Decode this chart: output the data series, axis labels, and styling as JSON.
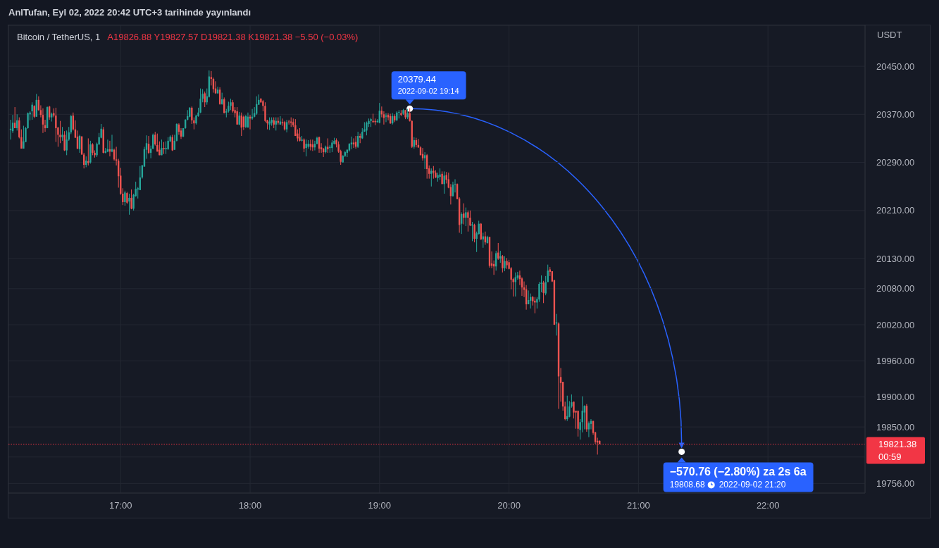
{
  "chart_data": {
    "type": "candlestick",
    "title": "Bitcoin / TetherUS, 1",
    "subtitle": "A19826.88 Y19827.57 D19821.38 K19821.38 −5.50 (−0.03%)",
    "ylabel": "USDT",
    "x": [
      "2022-09-02T16:09",
      "2022-09-02T16:10",
      "2022-09-02T16:11",
      "2022-09-02T16:12",
      "2022-09-02T16:13",
      "2022-09-02T16:14",
      "2022-09-02T16:15",
      "2022-09-02T16:16",
      "2022-09-02T16:17",
      "2022-09-02T16:18",
      "2022-09-02T16:19",
      "2022-09-02T16:20",
      "2022-09-02T16:21",
      "2022-09-02T16:22",
      "2022-09-02T16:23",
      "2022-09-02T16:24",
      "2022-09-02T16:25",
      "2022-09-02T16:26",
      "2022-09-02T16:27",
      "2022-09-02T16:28",
      "2022-09-02T16:29",
      "2022-09-02T16:30",
      "2022-09-02T16:31",
      "2022-09-02T16:32",
      "2022-09-02T16:33",
      "2022-09-02T16:34",
      "2022-09-02T16:35",
      "2022-09-02T16:36",
      "2022-09-02T16:37",
      "2022-09-02T16:38",
      "2022-09-02T16:39",
      "2022-09-02T16:40",
      "2022-09-02T16:41",
      "2022-09-02T16:42",
      "2022-09-02T16:43",
      "2022-09-02T16:44",
      "2022-09-02T16:45",
      "2022-09-02T16:46",
      "2022-09-02T16:47",
      "2022-09-02T16:48",
      "2022-09-02T16:49",
      "2022-09-02T16:50",
      "2022-09-02T16:51",
      "2022-09-02T16:52",
      "2022-09-02T16:53",
      "2022-09-02T16:54",
      "2022-09-02T16:55",
      "2022-09-02T16:56",
      "2022-09-02T16:57",
      "2022-09-02T16:58",
      "2022-09-02T16:59",
      "2022-09-02T17:00",
      "2022-09-02T17:01",
      "2022-09-02T17:02",
      "2022-09-02T17:03",
      "2022-09-02T17:04",
      "2022-09-02T17:05",
      "2022-09-02T17:06",
      "2022-09-02T17:07",
      "2022-09-02T17:08",
      "2022-09-02T17:09",
      "2022-09-02T17:10",
      "2022-09-02T17:11",
      "2022-09-02T17:12",
      "2022-09-02T17:13",
      "2022-09-02T17:14",
      "2022-09-02T17:15",
      "2022-09-02T17:16",
      "2022-09-02T17:17",
      "2022-09-02T17:18",
      "2022-09-02T17:19",
      "2022-09-02T17:20",
      "2022-09-02T17:21",
      "2022-09-02T17:22",
      "2022-09-02T17:23",
      "2022-09-02T17:24",
      "2022-09-02T17:25",
      "2022-09-02T17:26",
      "2022-09-02T17:27",
      "2022-09-02T17:28",
      "2022-09-02T17:29",
      "2022-09-02T17:30",
      "2022-09-02T17:31",
      "2022-09-02T17:32",
      "2022-09-02T17:33",
      "2022-09-02T17:34",
      "2022-09-02T17:35",
      "2022-09-02T17:36",
      "2022-09-02T17:37",
      "2022-09-02T17:38",
      "2022-09-02T17:39",
      "2022-09-02T17:40",
      "2022-09-02T17:41",
      "2022-09-02T17:42",
      "2022-09-02T17:43",
      "2022-09-02T17:44",
      "2022-09-02T17:45",
      "2022-09-02T17:46",
      "2022-09-02T17:47",
      "2022-09-02T17:48",
      "2022-09-02T17:49",
      "2022-09-02T17:50",
      "2022-09-02T17:51",
      "2022-09-02T17:52",
      "2022-09-02T17:53",
      "2022-09-02T17:54",
      "2022-09-02T17:55",
      "2022-09-02T17:56",
      "2022-09-02T17:57",
      "2022-09-02T17:58",
      "2022-09-02T17:59",
      "2022-09-02T18:00",
      "2022-09-02T18:01",
      "2022-09-02T18:02",
      "2022-09-02T18:03",
      "2022-09-02T18:04",
      "2022-09-02T18:05",
      "2022-09-02T18:06",
      "2022-09-02T18:07",
      "2022-09-02T18:08",
      "2022-09-02T18:09",
      "2022-09-02T18:10",
      "2022-09-02T18:11",
      "2022-09-02T18:12",
      "2022-09-02T18:13",
      "2022-09-02T18:14",
      "2022-09-02T18:15",
      "2022-09-02T18:16",
      "2022-09-02T18:17",
      "2022-09-02T18:18",
      "2022-09-02T18:19",
      "2022-09-02T18:20",
      "2022-09-02T18:21",
      "2022-09-02T18:22",
      "2022-09-02T18:23",
      "2022-09-02T18:24",
      "2022-09-02T18:25",
      "2022-09-02T18:26",
      "2022-09-02T18:27",
      "2022-09-02T18:28",
      "2022-09-02T18:29",
      "2022-09-02T18:30",
      "2022-09-02T18:31",
      "2022-09-02T18:32",
      "2022-09-02T18:33",
      "2022-09-02T18:34",
      "2022-09-02T18:35",
      "2022-09-02T18:36",
      "2022-09-02T18:37",
      "2022-09-02T18:38",
      "2022-09-02T18:39",
      "2022-09-02T18:40",
      "2022-09-02T18:41",
      "2022-09-02T18:42",
      "2022-09-02T18:43",
      "2022-09-02T18:44",
      "2022-09-02T18:45",
      "2022-09-02T18:46",
      "2022-09-02T18:47",
      "2022-09-02T18:48",
      "2022-09-02T18:49",
      "2022-09-02T18:50",
      "2022-09-02T18:51",
      "2022-09-02T18:52",
      "2022-09-02T18:53",
      "2022-09-02T18:54",
      "2022-09-02T18:55",
      "2022-09-02T18:56",
      "2022-09-02T18:57",
      "2022-09-02T18:58",
      "2022-09-02T18:59",
      "2022-09-02T19:00",
      "2022-09-02T19:01",
      "2022-09-02T19:02",
      "2022-09-02T19:03",
      "2022-09-02T19:04",
      "2022-09-02T19:05",
      "2022-09-02T19:06",
      "2022-09-02T19:07",
      "2022-09-02T19:08",
      "2022-09-02T19:09",
      "2022-09-02T19:10",
      "2022-09-02T19:11",
      "2022-09-02T19:12",
      "2022-09-02T19:13",
      "2022-09-02T19:14",
      "2022-09-02T19:15",
      "2022-09-02T19:16",
      "2022-09-02T19:17",
      "2022-09-02T19:18",
      "2022-09-02T19:19",
      "2022-09-02T19:20",
      "2022-09-02T19:21",
      "2022-09-02T19:22",
      "2022-09-02T19:23",
      "2022-09-02T19:24",
      "2022-09-02T19:25",
      "2022-09-02T19:26",
      "2022-09-02T19:27",
      "2022-09-02T19:28",
      "2022-09-02T19:29",
      "2022-09-02T19:30",
      "2022-09-02T19:31",
      "2022-09-02T19:32",
      "2022-09-02T19:33",
      "2022-09-02T19:34",
      "2022-09-02T19:35",
      "2022-09-02T19:36",
      "2022-09-02T19:37",
      "2022-09-02T19:38",
      "2022-09-02T19:39",
      "2022-09-02T19:40",
      "2022-09-02T19:41",
      "2022-09-02T19:42",
      "2022-09-02T19:43",
      "2022-09-02T19:44",
      "2022-09-02T19:45",
      "2022-09-02T19:46",
      "2022-09-02T19:47",
      "2022-09-02T19:48",
      "2022-09-02T19:49",
      "2022-09-02T19:50",
      "2022-09-02T19:51",
      "2022-09-02T19:52",
      "2022-09-02T19:53",
      "2022-09-02T19:54",
      "2022-09-02T19:55",
      "2022-09-02T19:56",
      "2022-09-02T19:57",
      "2022-09-02T19:58",
      "2022-09-02T19:59",
      "2022-09-02T20:00",
      "2022-09-02T20:01",
      "2022-09-02T20:02",
      "2022-09-02T20:03",
      "2022-09-02T20:04",
      "2022-09-02T20:05",
      "2022-09-02T20:06",
      "2022-09-02T20:07",
      "2022-09-02T20:08",
      "2022-09-02T20:09",
      "2022-09-02T20:10",
      "2022-09-02T20:11",
      "2022-09-02T20:12",
      "2022-09-02T20:13",
      "2022-09-02T20:14",
      "2022-09-02T20:15",
      "2022-09-02T20:16",
      "2022-09-02T20:17",
      "2022-09-02T20:18",
      "2022-09-02T20:19",
      "2022-09-02T20:20",
      "2022-09-02T20:21",
      "2022-09-02T20:22",
      "2022-09-02T20:23",
      "2022-09-02T20:24",
      "2022-09-02T20:25",
      "2022-09-02T20:26",
      "2022-09-02T20:27",
      "2022-09-02T20:28",
      "2022-09-02T20:29",
      "2022-09-02T20:30",
      "2022-09-02T20:31",
      "2022-09-02T20:32",
      "2022-09-02T20:33",
      "2022-09-02T20:34",
      "2022-09-02T20:35",
      "2022-09-02T20:36",
      "2022-09-02T20:37",
      "2022-09-02T20:38",
      "2022-09-02T20:39",
      "2022-09-02T20:40",
      "2022-09-02T20:41",
      "2022-09-02T20:42"
    ],
    "ohlc": [
      [
        20344,
        20361,
        20328,
        20346
      ],
      [
        20342,
        20369,
        20339,
        20356
      ],
      [
        20356,
        20382,
        20347,
        20347
      ],
      [
        20347,
        20370,
        20343,
        20360
      ],
      [
        20360,
        20365,
        20330,
        20332
      ],
      [
        20332,
        20345,
        20313,
        20313
      ],
      [
        20313,
        20351,
        20313,
        20325
      ],
      [
        20324,
        20349,
        20324,
        20347
      ],
      [
        20347,
        20373,
        20346,
        20372
      ],
      [
        20370,
        20375,
        20360,
        20373
      ],
      [
        20375,
        20390,
        20361,
        20386
      ],
      [
        20384,
        20385,
        20364,
        20366
      ],
      [
        20366,
        20404,
        20366,
        20394
      ],
      [
        20394,
        20400,
        20376,
        20377
      ],
      [
        20377,
        20385,
        20365,
        20369
      ],
      [
        20369,
        20380,
        20339,
        20353
      ],
      [
        20352,
        20361,
        20341,
        20347
      ],
      [
        20347,
        20383,
        20347,
        20382
      ],
      [
        20383,
        20384,
        20361,
        20365
      ],
      [
        20365,
        20373,
        20358,
        20371
      ],
      [
        20372,
        20380,
        20365,
        20368
      ],
      [
        20368,
        20381,
        20324,
        20347
      ],
      [
        20348,
        20349,
        20316,
        20336
      ],
      [
        20336,
        20359,
        20322,
        20332
      ],
      [
        20332,
        20349,
        20326,
        20336
      ],
      [
        20336,
        20342,
        20309,
        20310
      ],
      [
        20310,
        20343,
        20302,
        20328
      ],
      [
        20328,
        20349,
        20326,
        20340
      ],
      [
        20340,
        20369,
        20337,
        20367
      ],
      [
        20368,
        20373,
        20343,
        20345
      ],
      [
        20345,
        20360,
        20331,
        20331
      ],
      [
        20333,
        20343,
        20312,
        20313
      ],
      [
        20312,
        20336,
        20306,
        20334
      ],
      [
        20333,
        20334,
        20303,
        20303
      ],
      [
        20303,
        20306,
        20280,
        20286
      ],
      [
        20286,
        20300,
        20282,
        20293
      ],
      [
        20292,
        20330,
        20285,
        20289
      ],
      [
        20290,
        20326,
        20288,
        20320
      ],
      [
        20320,
        20322,
        20302,
        20306
      ],
      [
        20306,
        20310,
        20298,
        20302
      ],
      [
        20302,
        20323,
        20299,
        20321
      ],
      [
        20320,
        20339,
        20319,
        20332
      ],
      [
        20331,
        20354,
        20330,
        20346
      ],
      [
        20345,
        20349,
        20305,
        20306
      ],
      [
        20306,
        20314,
        20305,
        20309
      ],
      [
        20308,
        20328,
        20307,
        20312
      ],
      [
        20312,
        20326,
        20300,
        20308
      ],
      [
        20308,
        20336,
        20307,
        20312
      ],
      [
        20311,
        20313,
        20293,
        20295
      ],
      [
        20295,
        20316,
        20285,
        20293
      ],
      [
        20293,
        20296,
        20248,
        20267
      ],
      [
        20268,
        20281,
        20236,
        20238
      ],
      [
        20238,
        20247,
        20219,
        20224
      ],
      [
        20224,
        20243,
        20218,
        20240
      ],
      [
        20239,
        20241,
        20221,
        20223
      ],
      [
        20225,
        20238,
        20203,
        20231
      ],
      [
        20231,
        20245,
        20212,
        20213
      ],
      [
        20213,
        20238,
        20210,
        20236
      ],
      [
        20234,
        20258,
        20233,
        20246
      ],
      [
        20245,
        20249,
        20230,
        20247
      ],
      [
        20244,
        20284,
        20244,
        20265
      ],
      [
        20265,
        20286,
        20263,
        20285
      ],
      [
        20283,
        20316,
        20283,
        20312
      ],
      [
        20311,
        20335,
        20296,
        20322
      ],
      [
        20321,
        20334,
        20304,
        20306
      ],
      [
        20306,
        20318,
        20297,
        20313
      ],
      [
        20313,
        20338,
        20312,
        20336
      ],
      [
        20336,
        20341,
        20318,
        20320
      ],
      [
        20319,
        20338,
        20308,
        20308
      ],
      [
        20311,
        20325,
        20302,
        20302
      ],
      [
        20302,
        20328,
        20302,
        20314
      ],
      [
        20314,
        20324,
        20304,
        20312
      ],
      [
        20312,
        20325,
        20304,
        20314
      ],
      [
        20312,
        20332,
        20311,
        20326
      ],
      [
        20325,
        20335,
        20324,
        20333
      ],
      [
        20332,
        20336,
        20309,
        20310
      ],
      [
        20311,
        20336,
        20311,
        20326
      ],
      [
        20326,
        20355,
        20325,
        20354
      ],
      [
        20353,
        20355,
        20336,
        20341
      ],
      [
        20343,
        20347,
        20329,
        20333
      ],
      [
        20333,
        20347,
        20332,
        20347
      ],
      [
        20347,
        20362,
        20346,
        20361
      ],
      [
        20361,
        20377,
        20360,
        20367
      ],
      [
        20366,
        20382,
        20365,
        20381
      ],
      [
        20381,
        20383,
        20354,
        20360
      ],
      [
        20360,
        20365,
        20345,
        20355
      ],
      [
        20355,
        20369,
        20353,
        20368
      ],
      [
        20367,
        20381,
        20366,
        20373
      ],
      [
        20373,
        20413,
        20372,
        20396
      ],
      [
        20396,
        20412,
        20390,
        20404
      ],
      [
        20405,
        20408,
        20382,
        20390
      ],
      [
        20390,
        20413,
        20386,
        20400
      ],
      [
        20399,
        20443,
        20398,
        20433
      ],
      [
        20432,
        20442,
        20418,
        20429
      ],
      [
        20429,
        20431,
        20406,
        20412
      ],
      [
        20413,
        20425,
        20404,
        20405
      ],
      [
        20405,
        20416,
        20404,
        20411
      ],
      [
        20411,
        20415,
        20386,
        20387
      ],
      [
        20387,
        20406,
        20386,
        20395
      ],
      [
        20395,
        20398,
        20372,
        20372
      ],
      [
        20373,
        20379,
        20365,
        20375
      ],
      [
        20375,
        20391,
        20373,
        20384
      ],
      [
        20384,
        20396,
        20377,
        20390
      ],
      [
        20390,
        20394,
        20373,
        20375
      ],
      [
        20377,
        20382,
        20365,
        20372
      ],
      [
        20375,
        20382,
        20353,
        20353
      ],
      [
        20353,
        20374,
        20352,
        20368
      ],
      [
        20368,
        20373,
        20334,
        20348
      ],
      [
        20366,
        20368,
        20344,
        20349
      ],
      [
        20349,
        20369,
        20347,
        20367
      ],
      [
        20348,
        20373,
        20348,
        20366
      ],
      [
        20366,
        20369,
        20345,
        20363
      ],
      [
        20363,
        20379,
        20361,
        20366
      ],
      [
        20366,
        20382,
        20365,
        20372
      ],
      [
        20371,
        20400,
        20369,
        20387
      ],
      [
        20386,
        20403,
        20386,
        20394
      ],
      [
        20396,
        20397,
        20389,
        20390
      ],
      [
        20392,
        20394,
        20375,
        20384
      ],
      [
        20384,
        20390,
        20357,
        20359
      ],
      [
        20360,
        20361,
        20345,
        20355
      ],
      [
        20353,
        20365,
        20344,
        20358
      ],
      [
        20356,
        20365,
        20351,
        20361
      ],
      [
        20360,
        20365,
        20347,
        20353
      ],
      [
        20353,
        20365,
        20343,
        20359
      ],
      [
        20359,
        20365,
        20353,
        20356
      ],
      [
        20353,
        20367,
        20353,
        20358
      ],
      [
        20357,
        20363,
        20351,
        20355
      ],
      [
        20357,
        20359,
        20343,
        20345
      ],
      [
        20345,
        20361,
        20340,
        20357
      ],
      [
        20358,
        20361,
        20353,
        20357
      ],
      [
        20358,
        20365,
        20349,
        20356
      ],
      [
        20357,
        20363,
        20349,
        20352
      ],
      [
        20352,
        20362,
        20334,
        20334
      ],
      [
        20338,
        20345,
        20325,
        20330
      ],
      [
        20332,
        20347,
        20325,
        20326
      ],
      [
        20326,
        20334,
        20325,
        20328
      ],
      [
        20328,
        20330,
        20307,
        20313
      ],
      [
        20314,
        20328,
        20300,
        20321
      ],
      [
        20316,
        20327,
        20313,
        20321
      ],
      [
        20321,
        20328,
        20310,
        20316
      ],
      [
        20320,
        20328,
        20309,
        20315
      ],
      [
        20315,
        20326,
        20310,
        20321
      ],
      [
        20321,
        20333,
        20320,
        20331
      ],
      [
        20332,
        20333,
        20306,
        20313
      ],
      [
        20315,
        20322,
        20306,
        20312
      ],
      [
        20313,
        20314,
        20299,
        20307
      ],
      [
        20307,
        20318,
        20305,
        20316
      ],
      [
        20316,
        20330,
        20306,
        20312
      ],
      [
        20314,
        20319,
        20306,
        20316
      ],
      [
        20314,
        20327,
        20307,
        20323
      ],
      [
        20321,
        20331,
        20320,
        20326
      ],
      [
        20327,
        20330,
        20315,
        20320
      ],
      [
        20320,
        20325,
        20306,
        20308
      ],
      [
        20309,
        20311,
        20286,
        20291
      ],
      [
        20290,
        20302,
        20290,
        20301
      ],
      [
        20301,
        20309,
        20299,
        20307
      ],
      [
        20306,
        20312,
        20299,
        20311
      ],
      [
        20310,
        20322,
        20308,
        20321
      ],
      [
        20320,
        20333,
        20312,
        20323
      ],
      [
        20323,
        20330,
        20314,
        20320
      ],
      [
        20324,
        20334,
        20313,
        20316
      ],
      [
        20316,
        20341,
        20314,
        20334
      ],
      [
        20334,
        20338,
        20322,
        20331
      ],
      [
        20330,
        20347,
        20329,
        20341
      ],
      [
        20341,
        20357,
        20341,
        20345
      ],
      [
        20343,
        20358,
        20335,
        20356
      ],
      [
        20354,
        20363,
        20349,
        20359
      ],
      [
        20359,
        20364,
        20349,
        20362
      ],
      [
        20359,
        20371,
        20356,
        20357
      ],
      [
        20359,
        20363,
        20352,
        20357
      ],
      [
        20357,
        20362,
        20356,
        20359
      ],
      [
        20356,
        20389,
        20355,
        20376
      ],
      [
        20376,
        20383,
        20365,
        20370
      ],
      [
        20370,
        20375,
        20353,
        20364
      ],
      [
        20366,
        20372,
        20357,
        20368
      ],
      [
        20369,
        20372,
        20360,
        20365
      ],
      [
        20367,
        20371,
        20354,
        20355
      ],
      [
        20355,
        20372,
        20353,
        20367
      ],
      [
        20367,
        20370,
        20357,
        20360
      ],
      [
        20360,
        20375,
        20359,
        20373
      ],
      [
        20373,
        20377,
        20363,
        20374
      ],
      [
        20372,
        20377,
        20367,
        20369
      ],
      [
        20371,
        20379,
        20369,
        20377
      ],
      [
        20377,
        20377,
        20362,
        20365
      ],
      [
        20365,
        20379,
        20362,
        20372
      ],
      [
        20372,
        20380,
        20358,
        20359
      ],
      [
        20359,
        20360,
        20314,
        20316
      ],
      [
        20316,
        20332,
        20313,
        20327
      ],
      [
        20327,
        20331,
        20315,
        20319
      ],
      [
        20319,
        20329,
        20314,
        20315
      ],
      [
        20315,
        20317,
        20302,
        20302
      ],
      [
        20304,
        20314,
        20293,
        20297
      ],
      [
        20297,
        20307,
        20279,
        20302
      ],
      [
        20302,
        20304,
        20263,
        20279
      ],
      [
        20280,
        20285,
        20263,
        20271
      ],
      [
        20271,
        20280,
        20250,
        20276
      ],
      [
        20276,
        20284,
        20263,
        20273
      ],
      [
        20273,
        20277,
        20264,
        20265
      ],
      [
        20264,
        20273,
        20258,
        20269
      ],
      [
        20266,
        20280,
        20261,
        20270
      ],
      [
        20271,
        20275,
        20254,
        20254
      ],
      [
        20254,
        20275,
        20238,
        20268
      ],
      [
        20269,
        20274,
        20255,
        20261
      ],
      [
        20262,
        20273,
        20247,
        20248
      ],
      [
        20249,
        20254,
        20220,
        20234
      ],
      [
        20234,
        20258,
        20233,
        20253
      ],
      [
        20253,
        20262,
        20240,
        20254
      ],
      [
        20254,
        20255,
        20229,
        20229
      ],
      [
        20230,
        20232,
        20173,
        20186
      ],
      [
        20188,
        20207,
        20171,
        20204
      ],
      [
        20205,
        20222,
        20187,
        20198
      ],
      [
        20198,
        20215,
        20184,
        20207
      ],
      [
        20207,
        20210,
        20175,
        20198
      ],
      [
        20198,
        20210,
        20184,
        20185
      ],
      [
        20185,
        20191,
        20159,
        20187
      ],
      [
        20186,
        20188,
        20157,
        20163
      ],
      [
        20163,
        20175,
        20141,
        20172
      ],
      [
        20171,
        20193,
        20170,
        20188
      ],
      [
        20188,
        20189,
        20161,
        20162
      ],
      [
        20162,
        20173,
        20148,
        20167
      ],
      [
        20167,
        20175,
        20153,
        20157
      ],
      [
        20156,
        20168,
        20155,
        20166
      ],
      [
        20166,
        20166,
        20115,
        20118
      ],
      [
        20122,
        20142,
        20114,
        20118
      ],
      [
        20121,
        20127,
        20103,
        20117
      ],
      [
        20117,
        20143,
        20110,
        20139
      ],
      [
        20140,
        20156,
        20128,
        20130
      ],
      [
        20130,
        20143,
        20123,
        20134
      ],
      [
        20134,
        20136,
        20107,
        20114
      ],
      [
        20114,
        20134,
        20109,
        20126
      ],
      [
        20126,
        20131,
        20113,
        20119
      ],
      [
        20124,
        20128,
        20112,
        20113
      ],
      [
        20114,
        20116,
        20079,
        20095
      ],
      [
        20096,
        20098,
        20067,
        20091
      ],
      [
        20091,
        20107,
        20067,
        20099
      ],
      [
        20098,
        20108,
        20095,
        20102
      ],
      [
        20102,
        20110,
        20086,
        20096
      ],
      [
        20097,
        20099,
        20068,
        20082
      ],
      [
        20082,
        20092,
        20066,
        20078
      ],
      [
        20079,
        20086,
        20045,
        20054
      ],
      [
        20054,
        20077,
        20054,
        20061
      ],
      [
        20060,
        20072,
        20047,
        20066
      ],
      [
        20066,
        20068,
        20052,
        20059
      ],
      [
        20060,
        20066,
        20039,
        20057
      ],
      [
        20057,
        20066,
        20047,
        20063
      ],
      [
        20062,
        20091,
        20058,
        20088
      ],
      [
        20088,
        20102,
        20074,
        20090
      ],
      [
        20090,
        20093,
        20056,
        20073
      ],
      [
        20072,
        20101,
        20069,
        20091
      ],
      [
        20091,
        20120,
        20091,
        20110
      ],
      [
        20112,
        20116,
        20101,
        20108
      ],
      [
        20109,
        20109,
        20091,
        20092
      ],
      [
        20094,
        20095,
        20020,
        20020
      ],
      [
        20022,
        20038,
        20002,
        20024
      ],
      [
        20022,
        20024,
        19880,
        19934
      ],
      [
        19933,
        19948,
        19892,
        19923
      ],
      [
        19925,
        19925,
        19877,
        19884
      ],
      [
        19884,
        19892,
        19861,
        19863
      ],
      [
        19863,
        19902,
        19860,
        19868
      ],
      [
        19867,
        19893,
        19866,
        19884
      ],
      [
        19884,
        19904,
        19882,
        19891
      ],
      [
        19892,
        19892,
        19864,
        19874
      ],
      [
        19877,
        19877,
        19847,
        19874
      ],
      [
        19877,
        19877,
        19834,
        19847
      ],
      [
        19845,
        19863,
        19829,
        19858
      ],
      [
        19858,
        19901,
        19841,
        19877
      ],
      [
        19874,
        19886,
        19846,
        19885
      ],
      [
        19885,
        19888,
        19842,
        19846
      ],
      [
        19846,
        19859,
        19833,
        19856
      ],
      [
        19855,
        19863,
        19846,
        19860
      ],
      [
        19860,
        19860,
        19837,
        19840
      ],
      [
        19841,
        19842,
        19822,
        19825
      ],
      [
        19827,
        19832,
        19804,
        19824
      ],
      [
        19826.88,
        19827.57,
        19821.38,
        19821.38
      ]
    ],
    "xlim": [
      "2022-09-02T16:08",
      "2022-09-02T22:45"
    ],
    "xticks": [
      {
        "value": "2022-09-02T17:00",
        "label": "17:00"
      },
      {
        "value": "2022-09-02T18:00",
        "label": "18:00"
      },
      {
        "value": "2022-09-02T19:00",
        "label": "19:00"
      },
      {
        "value": "2022-09-02T20:00",
        "label": "20:00"
      },
      {
        "value": "2022-09-02T21:00",
        "label": "21:00"
      },
      {
        "value": "2022-09-02T22:00",
        "label": "22:00"
      }
    ],
    "ylim": [
      19740,
      20518
    ],
    "yticks": [
      {
        "value": 19756,
        "label": "19756.00"
      },
      {
        "value": 19800,
        "label": null
      },
      {
        "value": 19850,
        "label": "19850.00"
      },
      {
        "value": 19900,
        "label": "19900.00"
      },
      {
        "value": 19960,
        "label": "19960.00"
      },
      {
        "value": 20020,
        "label": "20020.00"
      },
      {
        "value": 20080,
        "label": "20080.00"
      },
      {
        "value": 20130,
        "label": "20130.00"
      },
      {
        "value": 20210,
        "label": "20210.00"
      },
      {
        "value": 20290,
        "label": "20290.00"
      },
      {
        "value": 20370,
        "label": "20370.00"
      },
      {
        "value": 20450,
        "label": "20450.00"
      }
    ],
    "grid": true,
    "ref_lines": [
      {
        "axis": "y",
        "value": 19821.38,
        "label": "19821.38",
        "color": "#f23645",
        "line_style": "dotted"
      }
    ],
    "annotations": [
      "AnlTufan, Eyl 02, 2022 20:42 UTC+3 tarihinde yayınlandı",
      "00:59",
      {
        "text": "20379.44",
        "x": "2022-09-02T19:14",
        "y": 20379.44
      },
      {
        "text": "2022-09-02 19:14",
        "x": "2022-09-02T19:14",
        "y": 20379.44
      },
      {
        "text": "−570.76 (−2.80%) za 2s 6a",
        "x": "2022-09-02T21:20",
        "y": 19808.68
      },
      "19808.68",
      "2022-09-02 21:20"
    ]
  }
}
